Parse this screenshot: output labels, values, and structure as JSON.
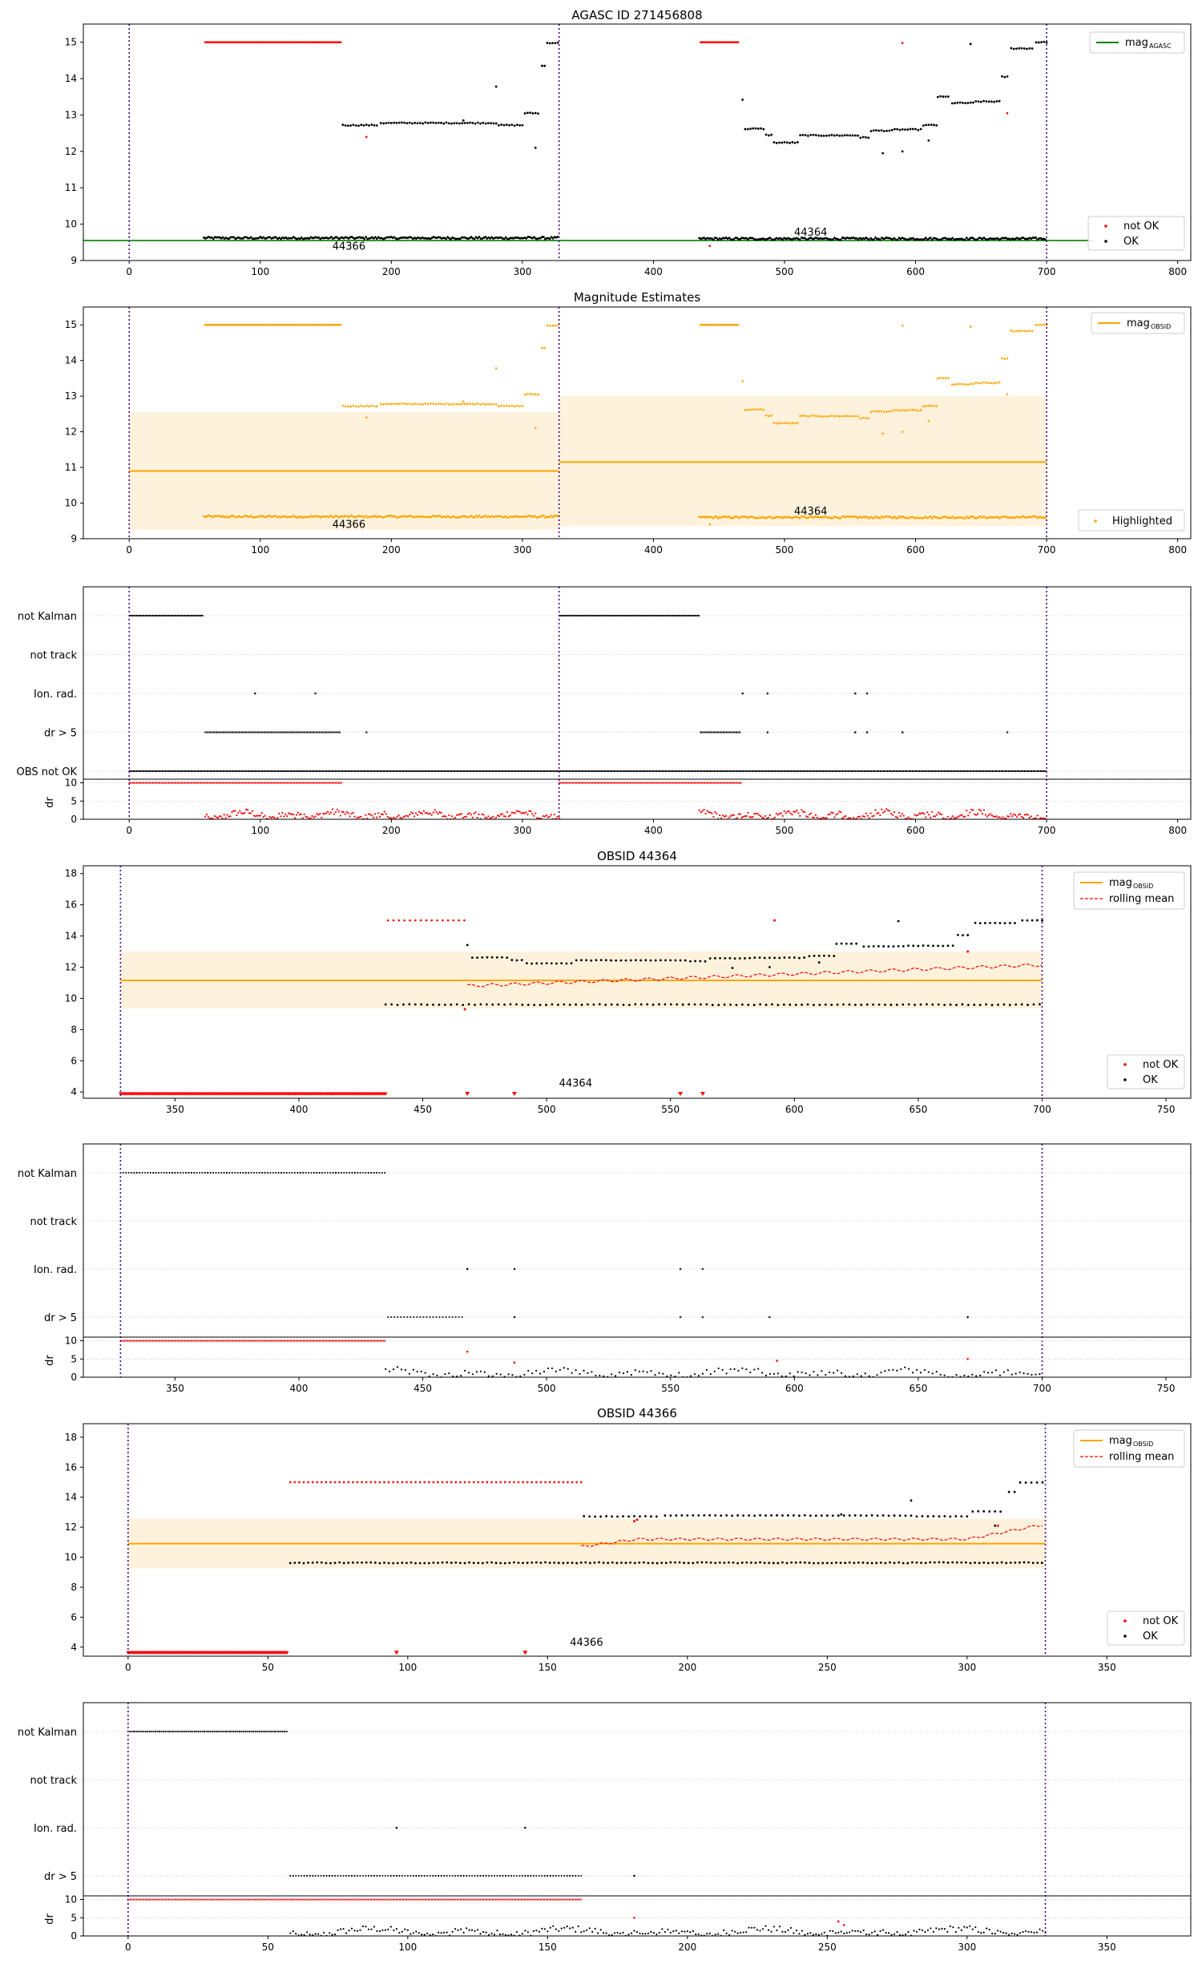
{
  "figure": {
    "panel1_title": "AGASC ID 271456808",
    "panel2_title": "Magnitude Estimates",
    "panel4_title": "OBSID 44364",
    "panel6_title": "OBSID 44366",
    "obs_label_a": "44366",
    "obs_label_b": "44364",
    "dr_axis_label": "dr"
  },
  "legends": {
    "mag_agasc_main": "mag",
    "mag_agasc_sub": "AGASC",
    "mag_obsid_main": "mag",
    "mag_obsid_sub": "OBSID",
    "not_ok": "not OK",
    "ok": "OK",
    "highlighted": "Highlighted",
    "rolling_mean": "rolling mean"
  },
  "flag_labels": [
    "not Kalman",
    "not track",
    "Ion. rad.",
    "dr > 5",
    "OBS not OK"
  ],
  "flag_labels_obs": [
    "not Kalman",
    "not track",
    "Ion. rad.",
    "dr > 5"
  ],
  "colors": {
    "ok": "#000000",
    "not_ok": "#ff0000",
    "highlight": "#ffa500",
    "agasc": "#008000",
    "boundary": "#4b0082",
    "band": "#fff2dc"
  },
  "chart_data": [
    {
      "type": "scatter",
      "title": "AGASC ID 271456808",
      "xlim": [
        -35,
        810
      ],
      "ylim": [
        9,
        15.5
      ],
      "xticks": [
        0,
        100,
        200,
        300,
        400,
        500,
        600,
        700,
        800
      ],
      "yticks": [
        9,
        10,
        11,
        12,
        13,
        14,
        15
      ],
      "mag_agasc": 9.55,
      "obs_boundaries": [
        0,
        328,
        700
      ],
      "legend": [
        "mag AGASC (top-right)",
        "not OK / OK (bottom-right)"
      ]
    },
    {
      "type": "scatter",
      "title": "Magnitude Estimates",
      "xlim": [
        -35,
        810
      ],
      "ylim": [
        9,
        15.5
      ],
      "xticks": [
        0,
        100,
        200,
        300,
        400,
        500,
        600,
        700,
        800
      ],
      "yticks": [
        9,
        10,
        11,
        12,
        13,
        14,
        15
      ],
      "mag_obsid": [
        {
          "x0": 0,
          "x1": 328,
          "mean": 10.9,
          "low": 9.25,
          "high": 12.55
        },
        {
          "x0": 328,
          "x1": 700,
          "mean": 11.15,
          "low": 9.35,
          "high": 13.0
        }
      ]
    },
    {
      "type": "scatter",
      "xlim": [
        -35,
        810
      ],
      "xticks": [
        0,
        100,
        200,
        300,
        400,
        500,
        600,
        700,
        800
      ],
      "dr_yticks": [
        0,
        5,
        10
      ]
    },
    {
      "type": "scatter",
      "title": "OBSID 44364",
      "xlim": [
        313,
        760
      ],
      "ylim": [
        3.6,
        18.5
      ],
      "xticks": [
        350,
        400,
        450,
        500,
        550,
        600,
        650,
        700,
        750
      ],
      "yticks": [
        4,
        6,
        8,
        10,
        12,
        14,
        16,
        18
      ],
      "mag_obsid": 11.15,
      "band": [
        9.35,
        13.0
      ]
    },
    {
      "type": "scatter",
      "xlim": [
        313,
        760
      ],
      "xticks": [
        350,
        400,
        450,
        500,
        550,
        600,
        650,
        700,
        750
      ],
      "dr_yticks": [
        0,
        5,
        10
      ]
    },
    {
      "type": "scatter",
      "title": "OBSID 44366",
      "xlim": [
        -16,
        380
      ],
      "ylim": [
        3.4,
        18.9
      ],
      "xticks": [
        0,
        50,
        100,
        150,
        200,
        250,
        300,
        350
      ],
      "yticks": [
        4,
        6,
        8,
        10,
        12,
        14,
        16,
        18
      ],
      "mag_obsid": 10.9,
      "band": [
        9.25,
        12.55
      ]
    },
    {
      "type": "scatter",
      "xlim": [
        -16,
        380
      ],
      "xticks": [
        0,
        50,
        100,
        150,
        200,
        250,
        300,
        350
      ],
      "dr_yticks": [
        0,
        5,
        10
      ]
    }
  ]
}
